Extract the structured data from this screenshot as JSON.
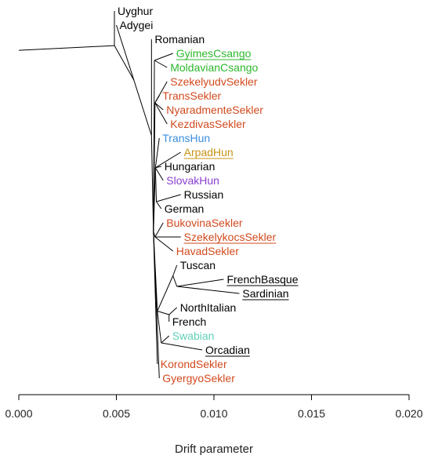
{
  "chart_data": {
    "type": "tree",
    "xlabel": "Drift parameter",
    "xlim": [
      0.0,
      0.02
    ],
    "xticks": [
      "0.000",
      "0.005",
      "0.010",
      "0.015",
      "0.020"
    ],
    "leaves": [
      {
        "name": "Uyghur",
        "x": 0.0049,
        "color": "#000000",
        "underline": false
      },
      {
        "name": "Adygei",
        "x": 0.005,
        "color": "#000000",
        "underline": false
      },
      {
        "name": "Romanian",
        "x": 0.0068,
        "color": "#000000",
        "underline": false
      },
      {
        "name": "GyimesCsango",
        "x": 0.0079,
        "color": "#2db82d",
        "underline": true
      },
      {
        "name": "MoldavianCsango",
        "x": 0.0076,
        "color": "#2db82d",
        "underline": false
      },
      {
        "name": "SzekelyudvSekler",
        "x": 0.0076,
        "color": "#d24a1e",
        "underline": false
      },
      {
        "name": "TransSekler",
        "x": 0.0072,
        "color": "#d24a1e",
        "underline": false
      },
      {
        "name": "NyaradmenteSekler",
        "x": 0.0074,
        "color": "#d24a1e",
        "underline": false
      },
      {
        "name": "KezdivasSekler",
        "x": 0.0076,
        "color": "#d24a1e",
        "underline": false
      },
      {
        "name": "TransHun",
        "x": 0.0072,
        "color": "#3b8ee0",
        "underline": false
      },
      {
        "name": "ArpadHun",
        "x": 0.0083,
        "color": "#c79314",
        "underline": true
      },
      {
        "name": "Hungarian",
        "x": 0.0073,
        "color": "#000000",
        "underline": false
      },
      {
        "name": "SlovakHun",
        "x": 0.0074,
        "color": "#8a3fd1",
        "underline": false
      },
      {
        "name": "Russian",
        "x": 0.0083,
        "color": "#000000",
        "underline": false
      },
      {
        "name": "German",
        "x": 0.0073,
        "color": "#000000",
        "underline": false
      },
      {
        "name": "BukovinaSekler",
        "x": 0.0074,
        "color": "#d24a1e",
        "underline": false
      },
      {
        "name": "SzekelykocsSekler",
        "x": 0.0083,
        "color": "#d24a1e",
        "underline": true
      },
      {
        "name": "HavadSekler",
        "x": 0.0079,
        "color": "#d24a1e",
        "underline": false
      },
      {
        "name": "Tuscan",
        "x": 0.0081,
        "color": "#000000",
        "underline": false
      },
      {
        "name": "FrenchBasque",
        "x": 0.0105,
        "color": "#000000",
        "underline": true
      },
      {
        "name": "Sardinian",
        "x": 0.0113,
        "color": "#000000",
        "underline": true
      },
      {
        "name": "NorthItalian",
        "x": 0.0081,
        "color": "#000000",
        "underline": false
      },
      {
        "name": "French",
        "x": 0.0077,
        "color": "#000000",
        "underline": false
      },
      {
        "name": "Swabian",
        "x": 0.0077,
        "color": "#5fd1b9",
        "underline": false
      },
      {
        "name": "Orcadian",
        "x": 0.0094,
        "color": "#000000",
        "underline": true
      },
      {
        "name": "KorondSekler",
        "x": 0.0071,
        "color": "#d24a1e",
        "underline": false
      },
      {
        "name": "GyergyoSekler",
        "x": 0.0072,
        "color": "#d24a1e",
        "underline": false
      }
    ]
  }
}
